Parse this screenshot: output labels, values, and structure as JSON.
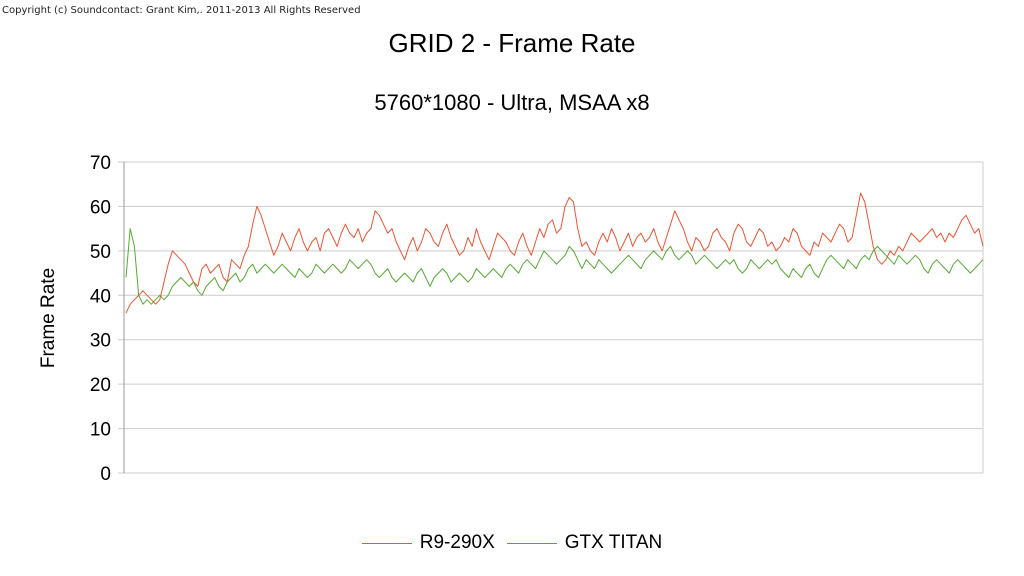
{
  "copyright": "Copyright (c) Soundcontact: Grant Kim,. 2011-2013 All Rights Reserved",
  "chart_data": {
    "type": "line",
    "title": "GRID 2 - Frame Rate",
    "subtitle": "5760*1080 - Ultra, MSAA x8",
    "xlabel": "",
    "ylabel": "Frame Rate",
    "ylim": [
      0,
      70
    ],
    "yticks": [
      "0",
      "10",
      "20",
      "30",
      "40",
      "50",
      "60",
      "70"
    ],
    "grid": true,
    "legend": "bottom",
    "colors": {
      "R9-290X": "#ee5533",
      "GTX TITAN": "#55aa33",
      "grid": "#cccccc",
      "axis": "#999999"
    },
    "series": [
      {
        "name": "R9-290X",
        "values": [
          36,
          38,
          39,
          40,
          41,
          40,
          39,
          38,
          39,
          43,
          47,
          50,
          49,
          48,
          47,
          45,
          43,
          42,
          46,
          47,
          45,
          46,
          47,
          44,
          43,
          48,
          47,
          46,
          49,
          51,
          56,
          60,
          58,
          55,
          52,
          49,
          51,
          54,
          52,
          50,
          53,
          55,
          52,
          50,
          52,
          53,
          50,
          54,
          55,
          53,
          51,
          54,
          56,
          54,
          53,
          55,
          52,
          54,
          55,
          59,
          58,
          56,
          54,
          55,
          52,
          50,
          48,
          51,
          53,
          50,
          52,
          55,
          54,
          52,
          51,
          54,
          56,
          53,
          51,
          49,
          50,
          53,
          51,
          55,
          52,
          50,
          48,
          51,
          54,
          53,
          52,
          50,
          49,
          52,
          54,
          51,
          49,
          52,
          55,
          53,
          56,
          57,
          54,
          55,
          60,
          62,
          61,
          55,
          51,
          52,
          50,
          49,
          52,
          54,
          52,
          55,
          53,
          50,
          52,
          54,
          51,
          53,
          54,
          52,
          53,
          55,
          52,
          50,
          53,
          56,
          59,
          57,
          55,
          52,
          50,
          53,
          52,
          50,
          51,
          54,
          55,
          53,
          52,
          50,
          54,
          56,
          55,
          52,
          51,
          53,
          55,
          54,
          51,
          52,
          50,
          51,
          53,
          52,
          55,
          54,
          51,
          50,
          49,
          52,
          51,
          54,
          53,
          52,
          54,
          56,
          55,
          52,
          53,
          58,
          63,
          61,
          56,
          51,
          48,
          47,
          48,
          50,
          49,
          51,
          50,
          52,
          54,
          53,
          52,
          53,
          54,
          55,
          53,
          54,
          52,
          54,
          53,
          55,
          57,
          58,
          56,
          54,
          55,
          51
        ],
        "values_note": ""
      },
      {
        "name": "GTX TITAN",
        "values": [
          44,
          55,
          51,
          40,
          38,
          39,
          38,
          39,
          40,
          39,
          40,
          42,
          43,
          44,
          43,
          42,
          43,
          41,
          40,
          42,
          43,
          44,
          42,
          41,
          43,
          44,
          45,
          43,
          44,
          46,
          47,
          45,
          46,
          47,
          46,
          45,
          46,
          47,
          46,
          45,
          44,
          46,
          45,
          44,
          45,
          47,
          46,
          45,
          46,
          47,
          46,
          45,
          46,
          48,
          47,
          46,
          47,
          48,
          47,
          45,
          44,
          45,
          46,
          44,
          43,
          44,
          45,
          44,
          43,
          45,
          46,
          44,
          42,
          44,
          45,
          46,
          45,
          43,
          44,
          45,
          44,
          43,
          44,
          46,
          45,
          44,
          45,
          46,
          45,
          44,
          46,
          47,
          46,
          45,
          47,
          48,
          47,
          46,
          48,
          50,
          49,
          48,
          47,
          48,
          49,
          51,
          50,
          48,
          46,
          48,
          47,
          46,
          48,
          47,
          46,
          45,
          46,
          47,
          48,
          49,
          48,
          47,
          46,
          48,
          49,
          50,
          49,
          48,
          50,
          51,
          49,
          48,
          49,
          50,
          49,
          47,
          48,
          49,
          48,
          47,
          46,
          47,
          48,
          47,
          48,
          46,
          45,
          46,
          48,
          47,
          46,
          47,
          48,
          47,
          48,
          46,
          45,
          44,
          46,
          45,
          44,
          46,
          47,
          45,
          44,
          46,
          48,
          49,
          48,
          47,
          46,
          48,
          47,
          46,
          48,
          49,
          48,
          50,
          51,
          50,
          49,
          48,
          47,
          49,
          48,
          47,
          48,
          49,
          48,
          46,
          45,
          47,
          48,
          47,
          46,
          45,
          47,
          48,
          47,
          46,
          45,
          46,
          47,
          48
        ],
        "values_note": ""
      }
    ]
  }
}
